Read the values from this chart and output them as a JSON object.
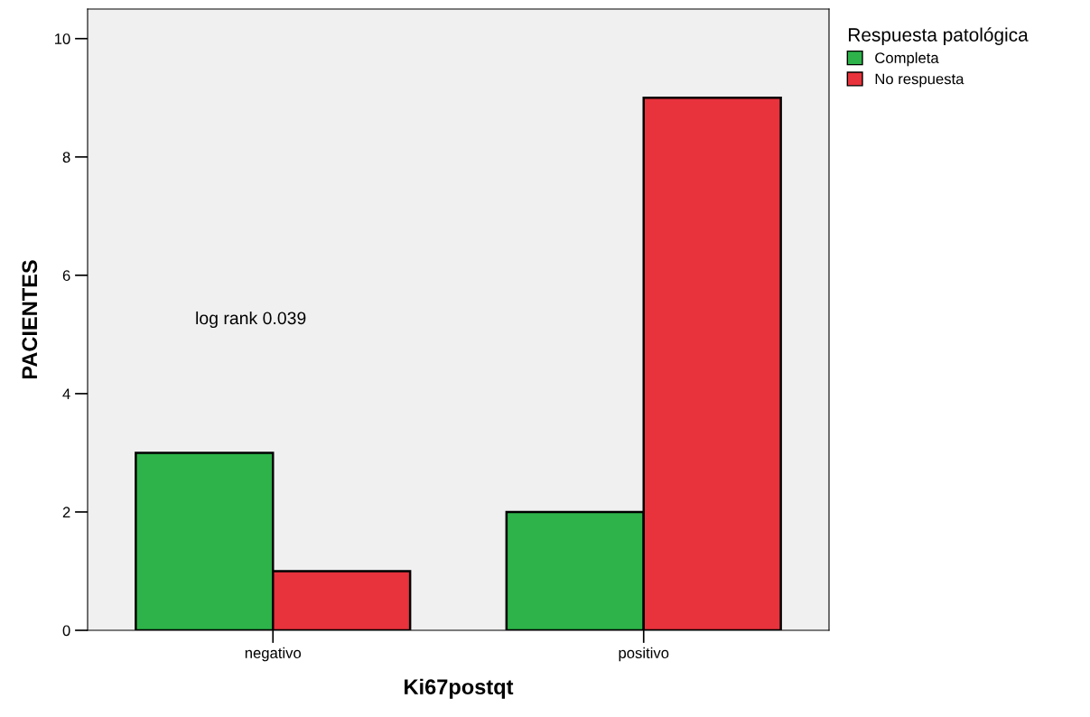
{
  "chart_data": {
    "type": "bar",
    "xlabel": "Ki67postqt",
    "ylabel": "PACIENTES",
    "legend_title": "Respuesta patológica",
    "categories": [
      "negativo",
      "positivo"
    ],
    "series": [
      {
        "name": "Completa",
        "color": "#2db34a",
        "values": [
          3,
          2
        ]
      },
      {
        "name": "No respuesta",
        "color": "#e8323c",
        "values": [
          1,
          9
        ]
      }
    ],
    "ylim": [
      0,
      10.5
    ],
    "yticks": [
      0,
      2,
      4,
      6,
      8,
      10
    ],
    "grid": false,
    "legend": "top right",
    "annotations": [
      "log rank 0.039"
    ]
  }
}
